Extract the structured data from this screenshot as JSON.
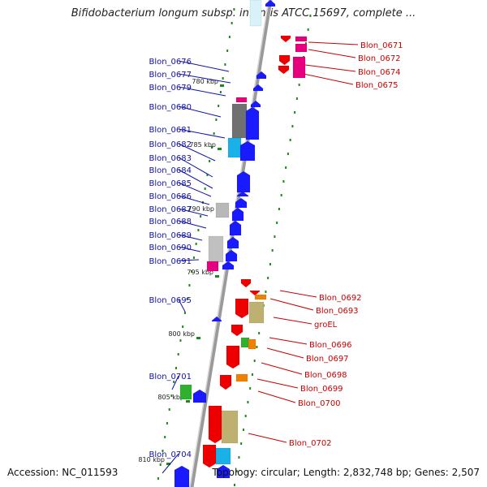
{
  "header": {
    "title": "Bifidobacterium longum subsp. infantis ATCC 15697, complete ..."
  },
  "footer": {
    "accession": "Accession: NC_011593",
    "topology": "Topology: circular; Length: 2,832,748 bp; Genes: 2,507"
  },
  "colors": {
    "left_label": "#1010a8",
    "right_label": "#c80000",
    "backbone": "#9a9a9a",
    "tick": "#1a8a1a"
  },
  "ticks": [
    "780 kbp",
    "785 kbp",
    "790 kbp",
    "795 kbp",
    "800 kbp",
    "805 kbp",
    "810 kbp"
  ],
  "left_genes": [
    "Blon_0676",
    "Blon_0677",
    "Blon_0679",
    "Blon_0680",
    "Blon_0681",
    "Blon_0682",
    "Blon_0683",
    "Blon_0684",
    "Blon_0685",
    "Blon_0686",
    "Blon_0687",
    "Blon_0688",
    "Blon_0689",
    "Blon_0690",
    "Blon_0691",
    "Blon_0695",
    "Blon_0701",
    "Blon_0704"
  ],
  "right_genes": [
    "Blon_0671",
    "Blon_0672",
    "Blon_0674",
    "Blon_0675",
    "Blon_0692",
    "Blon_0693",
    "groEL",
    "Blon_0696",
    "Blon_0697",
    "Blon_0698",
    "Blon_0699",
    "Blon_0700",
    "Blon_0702"
  ]
}
